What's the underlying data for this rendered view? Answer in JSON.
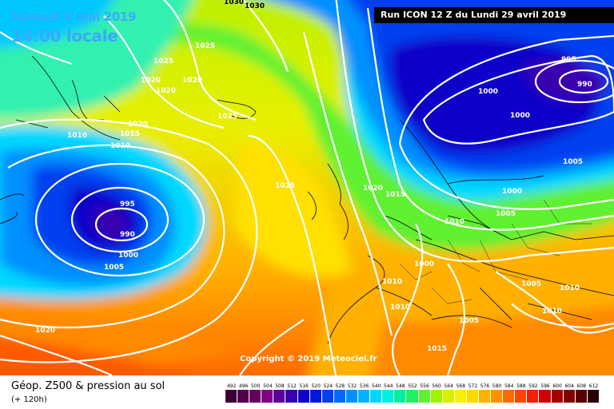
{
  "header": {
    "date_line": "Samedi 4 mai 2019",
    "time_line": "14:00 locale",
    "run_info": "Run ICON 12 Z du Lundi 29 avril 2019"
  },
  "copyright": "Copyright © 2019 Meteociel.fr",
  "footer": {
    "title": "Géop. Z500 & pression au sol",
    "subtitle": "(+ 120h)",
    "scale": [
      {
        "label": "492",
        "color": "#3a0036"
      },
      {
        "label": "496",
        "color": "#50004c"
      },
      {
        "label": "500",
        "color": "#66005f"
      },
      {
        "label": "504",
        "color": "#800080"
      },
      {
        "label": "508",
        "color": "#5a0096"
      },
      {
        "label": "512",
        "color": "#3700ae"
      },
      {
        "label": "516",
        "color": "#1000c8"
      },
      {
        "label": "520",
        "color": "#0018dc"
      },
      {
        "label": "524",
        "color": "#0040f0"
      },
      {
        "label": "528",
        "color": "#0068ff"
      },
      {
        "label": "532",
        "color": "#0090ff"
      },
      {
        "label": "536",
        "color": "#00b4ff"
      },
      {
        "label": "540",
        "color": "#00d8ff"
      },
      {
        "label": "544",
        "color": "#00f0e0"
      },
      {
        "label": "548",
        "color": "#00f0a0"
      },
      {
        "label": "552",
        "color": "#20f060"
      },
      {
        "label": "556",
        "color": "#60f030"
      },
      {
        "label": "560",
        "color": "#a0f000"
      },
      {
        "label": "564",
        "color": "#d8f000"
      },
      {
        "label": "568",
        "color": "#f8f000"
      },
      {
        "label": "572",
        "color": "#ffd800"
      },
      {
        "label": "576",
        "color": "#ffb400"
      },
      {
        "label": "580",
        "color": "#ff9000"
      },
      {
        "label": "584",
        "color": "#ff6a00"
      },
      {
        "label": "588",
        "color": "#ff4400"
      },
      {
        "label": "592",
        "color": "#f02000"
      },
      {
        "label": "596",
        "color": "#d00000"
      },
      {
        "label": "600",
        "color": "#a80000"
      },
      {
        "label": "604",
        "color": "#800000"
      },
      {
        "label": "608",
        "color": "#5a0000"
      },
      {
        "label": "612",
        "color": "#2a0000"
      }
    ]
  },
  "isobar_labels": [
    "1030",
    "1030",
    "1025",
    "1025",
    "1020",
    "1020",
    "1020",
    "1020",
    "1025",
    "1010",
    "1015",
    "1010",
    "995",
    "990",
    "1000",
    "1005",
    "1025",
    "1020",
    "1015",
    "1020",
    "995",
    "990",
    "1000",
    "1000",
    "1005",
    "1000",
    "1005",
    "1010",
    "1000",
    "1010",
    "1010",
    "1005",
    "1005",
    "1010",
    "1010",
    "1015"
  ]
}
